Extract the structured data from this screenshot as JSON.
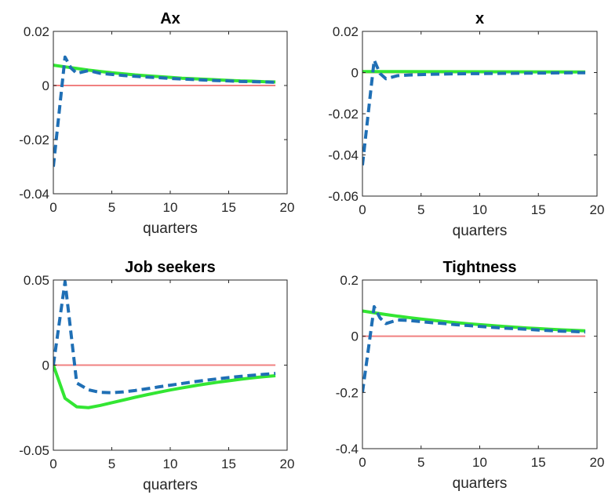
{
  "chart_data": [
    {
      "type": "line",
      "title": "Ax",
      "xlabel": "quarters",
      "ylabel": "",
      "xlim": [
        0,
        20
      ],
      "ylim": [
        -0.04,
        0.02
      ],
      "xticks": [
        "0",
        "5",
        "10",
        "15",
        "20"
      ],
      "yticks": [
        "-0.04",
        "-0.02",
        "0",
        "0.02"
      ],
      "grid": false,
      "series": [
        {
          "style": "solid",
          "color": "#f08080",
          "x": [
            0,
            19
          ],
          "y": [
            0,
            0
          ]
        },
        {
          "style": "solid",
          "color": "#33e633",
          "x": [
            0,
            1,
            2,
            3,
            4,
            5,
            6,
            7,
            8,
            9,
            10,
            11,
            12,
            13,
            14,
            15,
            16,
            17,
            18,
            19
          ],
          "y": [
            0.0075,
            0.0069,
            0.0063,
            0.0057,
            0.0052,
            0.0047,
            0.0043,
            0.0039,
            0.0036,
            0.0033,
            0.003,
            0.0027,
            0.0025,
            0.0023,
            0.0021,
            0.0019,
            0.0017,
            0.0016,
            0.0014,
            0.0013
          ]
        },
        {
          "style": "dashed",
          "color": "#1f6fb5",
          "x": [
            0,
            1,
            1.5,
            2,
            3,
            4,
            5,
            6,
            7,
            8,
            9,
            10,
            11,
            12,
            13,
            14,
            15,
            16,
            17,
            18,
            19
          ],
          "y": [
            -0.03,
            0.0105,
            0.0065,
            0.0045,
            0.0055,
            0.0045,
            0.0041,
            0.0037,
            0.0034,
            0.0031,
            0.0029,
            0.0026,
            0.0024,
            0.0022,
            0.002,
            0.0018,
            0.0017,
            0.0015,
            0.0014,
            0.0013,
            0.0012
          ]
        }
      ]
    },
    {
      "type": "line",
      "title": "x",
      "xlabel": "quarters",
      "ylabel": "",
      "xlim": [
        0,
        20
      ],
      "ylim": [
        -0.06,
        0.02
      ],
      "xticks": [
        "0",
        "5",
        "10",
        "15",
        "20"
      ],
      "yticks": [
        "-0.06",
        "-0.04",
        "-0.02",
        "0",
        "0.02"
      ],
      "grid": false,
      "series": [
        {
          "style": "solid",
          "color": "#f08080",
          "x": [
            0,
            19
          ],
          "y": [
            0,
            0
          ]
        },
        {
          "style": "solid",
          "color": "#33e633",
          "x": [
            0,
            19
          ],
          "y": [
            0.0005,
            0.0003
          ]
        },
        {
          "style": "dashed",
          "color": "#1f6fb5",
          "x": [
            0,
            1,
            1.5,
            2,
            3,
            4,
            5,
            6,
            8,
            10,
            12,
            14,
            16,
            18,
            19
          ],
          "y": [
            -0.045,
            0.006,
            -0.0005,
            -0.003,
            -0.0015,
            -0.0012,
            -0.001,
            -0.0008,
            -0.0006,
            -0.0005,
            -0.0004,
            -0.0003,
            -0.0002,
            -0.0001,
            -0.0001
          ]
        }
      ]
    },
    {
      "type": "line",
      "title": "Job seekers",
      "xlabel": "quarters",
      "ylabel": "",
      "xlim": [
        0,
        20
      ],
      "ylim": [
        -0.05,
        0.05
      ],
      "xticks": [
        "0",
        "5",
        "10",
        "15",
        "20"
      ],
      "yticks": [
        "-0.05",
        "0",
        "0.05"
      ],
      "grid": false,
      "series": [
        {
          "style": "solid",
          "color": "#f08080",
          "x": [
            0,
            19
          ],
          "y": [
            0,
            0
          ]
        },
        {
          "style": "solid",
          "color": "#33e633",
          "x": [
            0,
            1,
            2,
            3,
            4,
            5,
            6,
            7,
            8,
            9,
            10,
            11,
            12,
            13,
            14,
            15,
            16,
            17,
            18,
            19
          ],
          "y": [
            0,
            -0.0195,
            -0.0245,
            -0.025,
            -0.0237,
            -0.0221,
            -0.0205,
            -0.0189,
            -0.0174,
            -0.016,
            -0.0146,
            -0.0134,
            -0.0122,
            -0.0111,
            -0.0101,
            -0.0092,
            -0.0083,
            -0.0075,
            -0.0068,
            -0.0062
          ]
        },
        {
          "style": "dashed",
          "color": "#1f6fb5",
          "x": [
            0,
            1,
            2,
            3,
            4,
            5,
            6,
            7,
            8,
            9,
            10,
            11,
            12,
            13,
            14,
            15,
            16,
            17,
            18,
            19
          ],
          "y": [
            0,
            0.049,
            -0.0105,
            -0.0145,
            -0.016,
            -0.0162,
            -0.0157,
            -0.0149,
            -0.0139,
            -0.0128,
            -0.0118,
            -0.0108,
            -0.0098,
            -0.0089,
            -0.0081,
            -0.0073,
            -0.0066,
            -0.006,
            -0.0054,
            -0.0049
          ]
        }
      ]
    },
    {
      "type": "line",
      "title": "Tightness",
      "xlabel": "quarters",
      "ylabel": "",
      "xlim": [
        0,
        20
      ],
      "ylim": [
        -0.4,
        0.2
      ],
      "xticks": [
        "0",
        "5",
        "10",
        "15",
        "20"
      ],
      "yticks": [
        "-0.4",
        "-0.2",
        "0",
        "0.2"
      ],
      "grid": false,
      "series": [
        {
          "style": "solid",
          "color": "#f08080",
          "x": [
            0,
            19
          ],
          "y": [
            0,
            0
          ]
        },
        {
          "style": "solid",
          "color": "#33e633",
          "x": [
            0,
            1,
            2,
            3,
            4,
            5,
            6,
            7,
            8,
            9,
            10,
            11,
            12,
            13,
            14,
            15,
            16,
            17,
            18,
            19
          ],
          "y": [
            0.09,
            0.0835,
            0.0773,
            0.0715,
            0.0662,
            0.0612,
            0.0566,
            0.0523,
            0.0483,
            0.0446,
            0.0412,
            0.038,
            0.035,
            0.0322,
            0.0296,
            0.0272,
            0.025,
            0.0229,
            0.021,
            0.0192
          ]
        },
        {
          "style": "dashed",
          "color": "#1f6fb5",
          "x": [
            0,
            1,
            1.5,
            2,
            3,
            4,
            5,
            6,
            7,
            8,
            9,
            10,
            11,
            12,
            13,
            14,
            15,
            16,
            17,
            18,
            19
          ],
          "y": [
            -0.2,
            0.105,
            0.065,
            0.045,
            0.058,
            0.056,
            0.052,
            0.048,
            0.045,
            0.041,
            0.038,
            0.035,
            0.032,
            0.029,
            0.027,
            0.025,
            0.022,
            0.02,
            0.018,
            0.017,
            0.015
          ]
        }
      ]
    }
  ]
}
